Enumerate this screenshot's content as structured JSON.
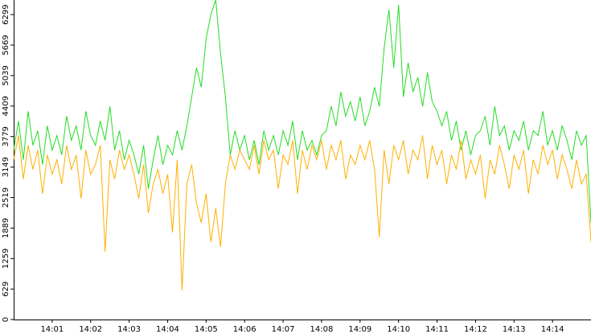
{
  "chart_data": {
    "type": "line",
    "x": [
      0,
      0.125,
      0.25,
      0.375,
      0.5,
      0.625,
      0.75,
      0.875,
      1,
      1.125,
      1.25,
      1.375,
      1.5,
      1.625,
      1.75,
      1.875,
      2,
      2.125,
      2.25,
      2.375,
      2.5,
      2.625,
      2.75,
      2.875,
      3,
      3.125,
      3.25,
      3.375,
      3.5,
      3.625,
      3.75,
      3.875,
      4,
      4.125,
      4.25,
      4.375,
      4.5,
      4.625,
      4.75,
      4.875,
      5,
      5.125,
      5.25,
      5.375,
      5.5,
      5.625,
      5.75,
      5.875,
      6,
      6.125,
      6.25,
      6.375,
      6.5,
      6.625,
      6.75,
      6.875,
      7,
      7.125,
      7.25,
      7.375,
      7.5,
      7.625,
      7.75,
      7.875,
      8,
      8.125,
      8.25,
      8.375,
      8.5,
      8.625,
      8.75,
      8.875,
      9,
      9.125,
      9.25,
      9.375,
      9.5,
      9.625,
      9.75,
      9.875,
      10,
      10.125,
      10.25,
      10.375,
      10.5,
      10.625,
      10.75,
      10.875,
      11,
      11.125,
      11.25,
      11.375,
      11.5,
      11.625,
      11.75,
      11.875,
      12,
      12.125,
      12.25,
      12.375,
      12.5,
      12.625,
      12.75,
      12.875,
      13,
      13.125,
      13.25,
      13.375,
      13.5,
      13.625,
      13.75,
      13.875,
      14,
      14.125,
      14.25,
      14.375,
      14.5,
      14.625,
      14.75,
      14.875,
      15
    ],
    "series": [
      {
        "color": "#22dd22",
        "values": [
          3500,
          4100,
          3300,
          4300,
          3600,
          3900,
          3200,
          4000,
          3500,
          3800,
          3400,
          4200,
          3700,
          4000,
          3500,
          4300,
          3800,
          3600,
          4100,
          3700,
          4400,
          3500,
          3900,
          3300,
          3700,
          3400,
          3000,
          3600,
          2700,
          3300,
          3800,
          3200,
          3600,
          3400,
          3900,
          3500,
          4000,
          4600,
          5200,
          4800,
          5800,
          6300,
          6600,
          5500,
          4600,
          3400,
          3900,
          3500,
          3800,
          3300,
          3700,
          3200,
          3900,
          3500,
          3800,
          3400,
          3900,
          3600,
          4100,
          3300,
          3900,
          3500,
          3700,
          3400,
          3800,
          3900,
          4400,
          4000,
          4700,
          4200,
          4500,
          4100,
          4600,
          4000,
          4300,
          4800,
          4400,
          5600,
          6400,
          5200,
          6500,
          4600,
          5300,
          4700,
          5000,
          4400,
          5100,
          4500,
          4300,
          4000,
          4300,
          3700,
          4100,
          3500,
          3900,
          3400,
          3800,
          3900,
          4200,
          3600,
          4400,
          3800,
          4000,
          3500,
          3900,
          3700,
          4100,
          3500,
          3900,
          3800,
          4300,
          3600,
          3900,
          3500,
          4000,
          3700,
          3300,
          3900,
          3600,
          3800,
          2000
        ]
      },
      {
        "color": "#ffb000",
        "values": [
          3300,
          3800,
          2900,
          3600,
          3100,
          3500,
          2600,
          3400,
          3000,
          3300,
          2800,
          3600,
          3100,
          3400,
          2500,
          3500,
          3000,
          3200,
          3600,
          1400,
          3300,
          2900,
          3500,
          3100,
          3400,
          3000,
          2500,
          3200,
          2200,
          2800,
          3100,
          2600,
          3000,
          1800,
          3300,
          600,
          2800,
          3200,
          2400,
          2000,
          2600,
          1600,
          2300,
          1500,
          2800,
          3400,
          3100,
          3500,
          3300,
          3100,
          3600,
          3000,
          3700,
          3300,
          3500,
          2700,
          3400,
          3200,
          3700,
          2600,
          3500,
          3100,
          3600,
          3300,
          3700,
          3100,
          3600,
          3300,
          3700,
          2900,
          3400,
          3200,
          3600,
          3300,
          3700,
          3100,
          1700,
          3500,
          2800,
          3600,
          3300,
          3700,
          3000,
          3500,
          3300,
          3800,
          2900,
          3600,
          3200,
          3500,
          2800,
          3400,
          3100,
          3700,
          2900,
          3300,
          3000,
          3400,
          2500,
          3300,
          3000,
          3600,
          3200,
          2700,
          3400,
          3100,
          3500,
          2600,
          3300,
          3000,
          3600,
          3200,
          3500,
          2900,
          3400,
          3100,
          2700,
          3300,
          2800,
          3000,
          1600
        ]
      }
    ],
    "xlim": [
      0,
      15
    ],
    "xticks": [
      {
        "value": 1,
        "label": "14:01"
      },
      {
        "value": 2,
        "label": "14:02"
      },
      {
        "value": 3,
        "label": "14:03"
      },
      {
        "value": 4,
        "label": "14:04"
      },
      {
        "value": 5,
        "label": "14:05"
      },
      {
        "value": 6,
        "label": "14:06"
      },
      {
        "value": 7,
        "label": "14:07"
      },
      {
        "value": 8,
        "label": "14:08"
      },
      {
        "value": 9,
        "label": "14:09"
      },
      {
        "value": 10,
        "label": "14:10"
      },
      {
        "value": 11,
        "label": "14:11"
      },
      {
        "value": 12,
        "label": "14:12"
      },
      {
        "value": 13,
        "label": "14:13"
      },
      {
        "value": 14,
        "label": "14:14"
      }
    ],
    "ylim": [
      0,
      6600
    ],
    "yticks": [
      0,
      629,
      1259,
      1889,
      2519,
      3149,
      3779,
      4409,
      5039,
      5669,
      6299
    ]
  }
}
